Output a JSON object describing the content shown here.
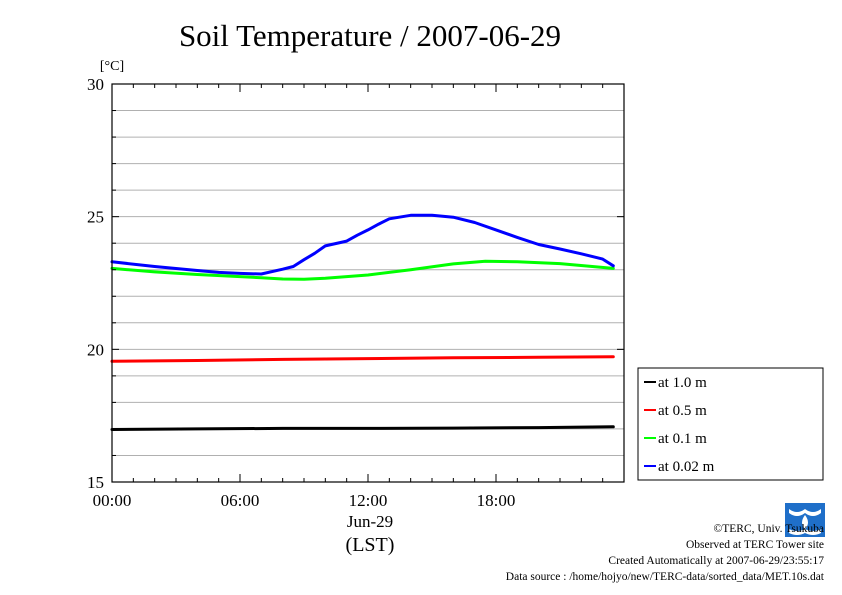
{
  "chart_data": {
    "type": "line",
    "title": "Soil Temperature / 2007-06-29",
    "ylabel": "[°C]",
    "xlabel": "(LST)",
    "x_date_label": "Jun-29",
    "x_ticks": [
      "00:00",
      "06:00",
      "12:00",
      "18:00"
    ],
    "y_ticks": [
      "30",
      "25",
      "20",
      "15"
    ],
    "ylim": [
      15,
      30
    ],
    "xlim_hours": [
      0,
      24
    ],
    "grid": true,
    "legend_position": "outside-right-bottom",
    "series": [
      {
        "name": "at 1.0 m",
        "color": "#000000",
        "x": [
          0,
          4,
          8,
          12,
          16,
          20,
          23.5
        ],
        "values": [
          16.98,
          17.0,
          17.02,
          17.02,
          17.03,
          17.05,
          17.08
        ]
      },
      {
        "name": "at 0.5 m",
        "color": "#ff0000",
        "x": [
          0,
          4,
          8,
          12,
          16,
          20,
          23.5
        ],
        "values": [
          19.55,
          19.58,
          19.62,
          19.65,
          19.68,
          19.7,
          19.72
        ]
      },
      {
        "name": "at 0.1 m",
        "color": "#00ff00",
        "x": [
          0,
          2,
          4,
          6,
          7,
          8,
          9,
          10,
          12,
          14,
          16,
          17.5,
          19,
          21,
          23.5
        ],
        "values": [
          23.05,
          22.92,
          22.82,
          22.74,
          22.7,
          22.65,
          22.64,
          22.68,
          22.8,
          23.0,
          23.22,
          23.32,
          23.3,
          23.23,
          23.05
        ]
      },
      {
        "name": "at 0.02 m",
        "color": "#0000ff",
        "x": [
          0,
          2,
          4,
          5,
          6,
          7,
          8,
          8.5,
          9,
          9.5,
          10,
          11,
          11.5,
          12,
          12.5,
          13,
          14,
          15,
          16,
          17,
          18,
          19,
          20,
          21,
          22,
          23,
          23.5
        ],
        "values": [
          23.3,
          23.12,
          22.97,
          22.9,
          22.86,
          22.84,
          23.02,
          23.12,
          23.38,
          23.62,
          23.9,
          24.08,
          24.3,
          24.5,
          24.72,
          24.92,
          25.05,
          25.05,
          24.98,
          24.78,
          24.5,
          24.22,
          23.95,
          23.78,
          23.6,
          23.4,
          23.15
        ]
      }
    ]
  },
  "footer": {
    "copyright": "©TERC, Univ. Tsukuba",
    "site": "Observed at TERC Tower site",
    "created": "Created Automatically at 2007-06-29/23:55:17",
    "source": "Data source : /home/hojyo/new/TERC-data/sorted_data/MET.10s.dat"
  }
}
